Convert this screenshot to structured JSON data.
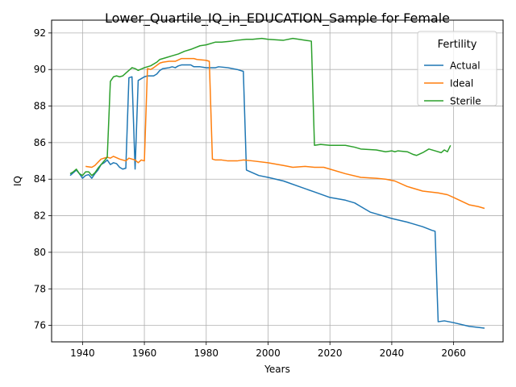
{
  "chart_data": {
    "type": "line",
    "title": "Lower_Quartile_IQ_in_EDUCATION_Sample for Female",
    "xlabel": "Years",
    "ylabel": "IQ",
    "xlim": [
      1930,
      2076
    ],
    "ylim": [
      75.1,
      92.7
    ],
    "xticks": [
      1940,
      1960,
      1980,
      2000,
      2020,
      2040,
      2060
    ],
    "yticks": [
      76,
      78,
      80,
      82,
      84,
      86,
      88,
      90,
      92
    ],
    "grid": true,
    "legend": {
      "title": "Fertility",
      "placement": "top-right"
    },
    "series": [
      {
        "name": "Actual",
        "color": "#1f77b4",
        "points": [
          [
            1936,
            84.2
          ],
          [
            1937,
            84.35
          ],
          [
            1938,
            84.5
          ],
          [
            1939,
            84.3
          ],
          [
            1940,
            84.05
          ],
          [
            1941,
            84.2
          ],
          [
            1942,
            84.25
          ],
          [
            1943,
            84.05
          ],
          [
            1944,
            84.3
          ],
          [
            1945,
            84.5
          ],
          [
            1946,
            84.8
          ],
          [
            1947,
            84.9
          ],
          [
            1948,
            85.05
          ],
          [
            1949,
            84.8
          ],
          [
            1950,
            84.9
          ],
          [
            1951,
            84.85
          ],
          [
            1952,
            84.65
          ],
          [
            1953,
            84.55
          ],
          [
            1954,
            84.6
          ],
          [
            1955,
            89.55
          ],
          [
            1956,
            89.6
          ],
          [
            1957,
            84.55
          ],
          [
            1958,
            89.4
          ],
          [
            1959,
            89.5
          ],
          [
            1960,
            89.6
          ],
          [
            1961,
            89.65
          ],
          [
            1962,
            89.65
          ],
          [
            1963,
            89.65
          ],
          [
            1964,
            89.75
          ],
          [
            1965,
            89.95
          ],
          [
            1966,
            90.05
          ],
          [
            1968,
            90.1
          ],
          [
            1969,
            90.15
          ],
          [
            1970,
            90.1
          ],
          [
            1971,
            90.2
          ],
          [
            1972,
            90.25
          ],
          [
            1975,
            90.25
          ],
          [
            1976,
            90.15
          ],
          [
            1978,
            90.15
          ],
          [
            1980,
            90.1
          ],
          [
            1983,
            90.1
          ],
          [
            1984,
            90.15
          ],
          [
            1987,
            90.1
          ],
          [
            1990,
            90.0
          ],
          [
            1992,
            89.9
          ],
          [
            1993,
            84.5
          ],
          [
            1995,
            84.35
          ],
          [
            1997,
            84.2
          ],
          [
            2000,
            84.1
          ],
          [
            2005,
            83.9
          ],
          [
            2010,
            83.6
          ],
          [
            2015,
            83.3
          ],
          [
            2020,
            83.0
          ],
          [
            2025,
            82.85
          ],
          [
            2028,
            82.7
          ],
          [
            2030,
            82.5
          ],
          [
            2033,
            82.2
          ],
          [
            2036,
            82.05
          ],
          [
            2040,
            81.85
          ],
          [
            2045,
            81.65
          ],
          [
            2050,
            81.4
          ],
          [
            2053,
            81.2
          ],
          [
            2054,
            81.15
          ],
          [
            2055,
            76.2
          ],
          [
            2057,
            76.25
          ],
          [
            2060,
            76.15
          ],
          [
            2065,
            75.95
          ],
          [
            2070,
            75.85
          ]
        ]
      },
      {
        "name": "Ideal",
        "color": "#ff7f0e",
        "points": [
          [
            1941,
            84.7
          ],
          [
            1943,
            84.65
          ],
          [
            1944,
            84.75
          ],
          [
            1946,
            85.1
          ],
          [
            1948,
            85.2
          ],
          [
            1949,
            85.15
          ],
          [
            1950,
            85.25
          ],
          [
            1952,
            85.1
          ],
          [
            1954,
            85.0
          ],
          [
            1955,
            85.15
          ],
          [
            1957,
            85.05
          ],
          [
            1958,
            84.9
          ],
          [
            1959,
            85.05
          ],
          [
            1960,
            85.0
          ],
          [
            1961,
            90.05
          ],
          [
            1962,
            90.0
          ],
          [
            1963,
            90.1
          ],
          [
            1965,
            90.35
          ],
          [
            1966,
            90.4
          ],
          [
            1968,
            90.45
          ],
          [
            1970,
            90.45
          ],
          [
            1972,
            90.6
          ],
          [
            1976,
            90.6
          ],
          [
            1977,
            90.55
          ],
          [
            1980,
            90.5
          ],
          [
            1981,
            90.45
          ],
          [
            1982,
            85.1
          ],
          [
            1983,
            85.05
          ],
          [
            1985,
            85.05
          ],
          [
            1987,
            85.0
          ],
          [
            1990,
            85.0
          ],
          [
            1992,
            85.05
          ],
          [
            1995,
            85.0
          ],
          [
            2000,
            84.9
          ],
          [
            2005,
            84.75
          ],
          [
            2008,
            84.65
          ],
          [
            2012,
            84.7
          ],
          [
            2015,
            84.65
          ],
          [
            2018,
            84.65
          ],
          [
            2020,
            84.55
          ],
          [
            2025,
            84.3
          ],
          [
            2030,
            84.1
          ],
          [
            2035,
            84.05
          ],
          [
            2038,
            84.0
          ],
          [
            2041,
            83.9
          ],
          [
            2045,
            83.6
          ],
          [
            2050,
            83.35
          ],
          [
            2055,
            83.25
          ],
          [
            2058,
            83.15
          ],
          [
            2060,
            83.0
          ],
          [
            2065,
            82.6
          ],
          [
            2068,
            82.5
          ],
          [
            2070,
            82.4
          ]
        ]
      },
      {
        "name": "Sterile",
        "color": "#2ca02c",
        "points": [
          [
            1936,
            84.3
          ],
          [
            1937,
            84.4
          ],
          [
            1938,
            84.55
          ],
          [
            1939,
            84.3
          ],
          [
            1940,
            84.2
          ],
          [
            1941,
            84.4
          ],
          [
            1942,
            84.4
          ],
          [
            1943,
            84.2
          ],
          [
            1944,
            84.35
          ],
          [
            1945,
            84.6
          ],
          [
            1946,
            84.8
          ],
          [
            1947,
            85.0
          ],
          [
            1948,
            85.2
          ],
          [
            1949,
            89.35
          ],
          [
            1950,
            89.6
          ],
          [
            1951,
            89.65
          ],
          [
            1952,
            89.6
          ],
          [
            1953,
            89.65
          ],
          [
            1954,
            89.8
          ],
          [
            1955,
            89.95
          ],
          [
            1956,
            90.1
          ],
          [
            1957,
            90.05
          ],
          [
            1958,
            89.95
          ],
          [
            1960,
            90.1
          ],
          [
            1962,
            90.2
          ],
          [
            1964,
            90.4
          ],
          [
            1965,
            90.55
          ],
          [
            1967,
            90.65
          ],
          [
            1969,
            90.75
          ],
          [
            1971,
            90.85
          ],
          [
            1973,
            91.0
          ],
          [
            1975,
            91.1
          ],
          [
            1978,
            91.3
          ],
          [
            1980,
            91.35
          ],
          [
            1983,
            91.5
          ],
          [
            1985,
            91.5
          ],
          [
            1988,
            91.55
          ],
          [
            1990,
            91.6
          ],
          [
            1993,
            91.65
          ],
          [
            1995,
            91.65
          ],
          [
            1998,
            91.7
          ],
          [
            2000,
            91.65
          ],
          [
            2005,
            91.6
          ],
          [
            2008,
            91.7
          ],
          [
            2010,
            91.65
          ],
          [
            2014,
            91.55
          ],
          [
            2015,
            85.85
          ],
          [
            2017,
            85.9
          ],
          [
            2020,
            85.85
          ],
          [
            2025,
            85.85
          ],
          [
            2028,
            85.75
          ],
          [
            2030,
            85.65
          ],
          [
            2035,
            85.6
          ],
          [
            2038,
            85.5
          ],
          [
            2040,
            85.55
          ],
          [
            2041,
            85.5
          ],
          [
            2042,
            85.55
          ],
          [
            2045,
            85.5
          ],
          [
            2047,
            85.35
          ],
          [
            2048,
            85.3
          ],
          [
            2050,
            85.45
          ],
          [
            2052,
            85.65
          ],
          [
            2054,
            85.55
          ],
          [
            2056,
            85.45
          ],
          [
            2057,
            85.6
          ],
          [
            2058,
            85.5
          ],
          [
            2059,
            85.85
          ]
        ]
      }
    ]
  }
}
